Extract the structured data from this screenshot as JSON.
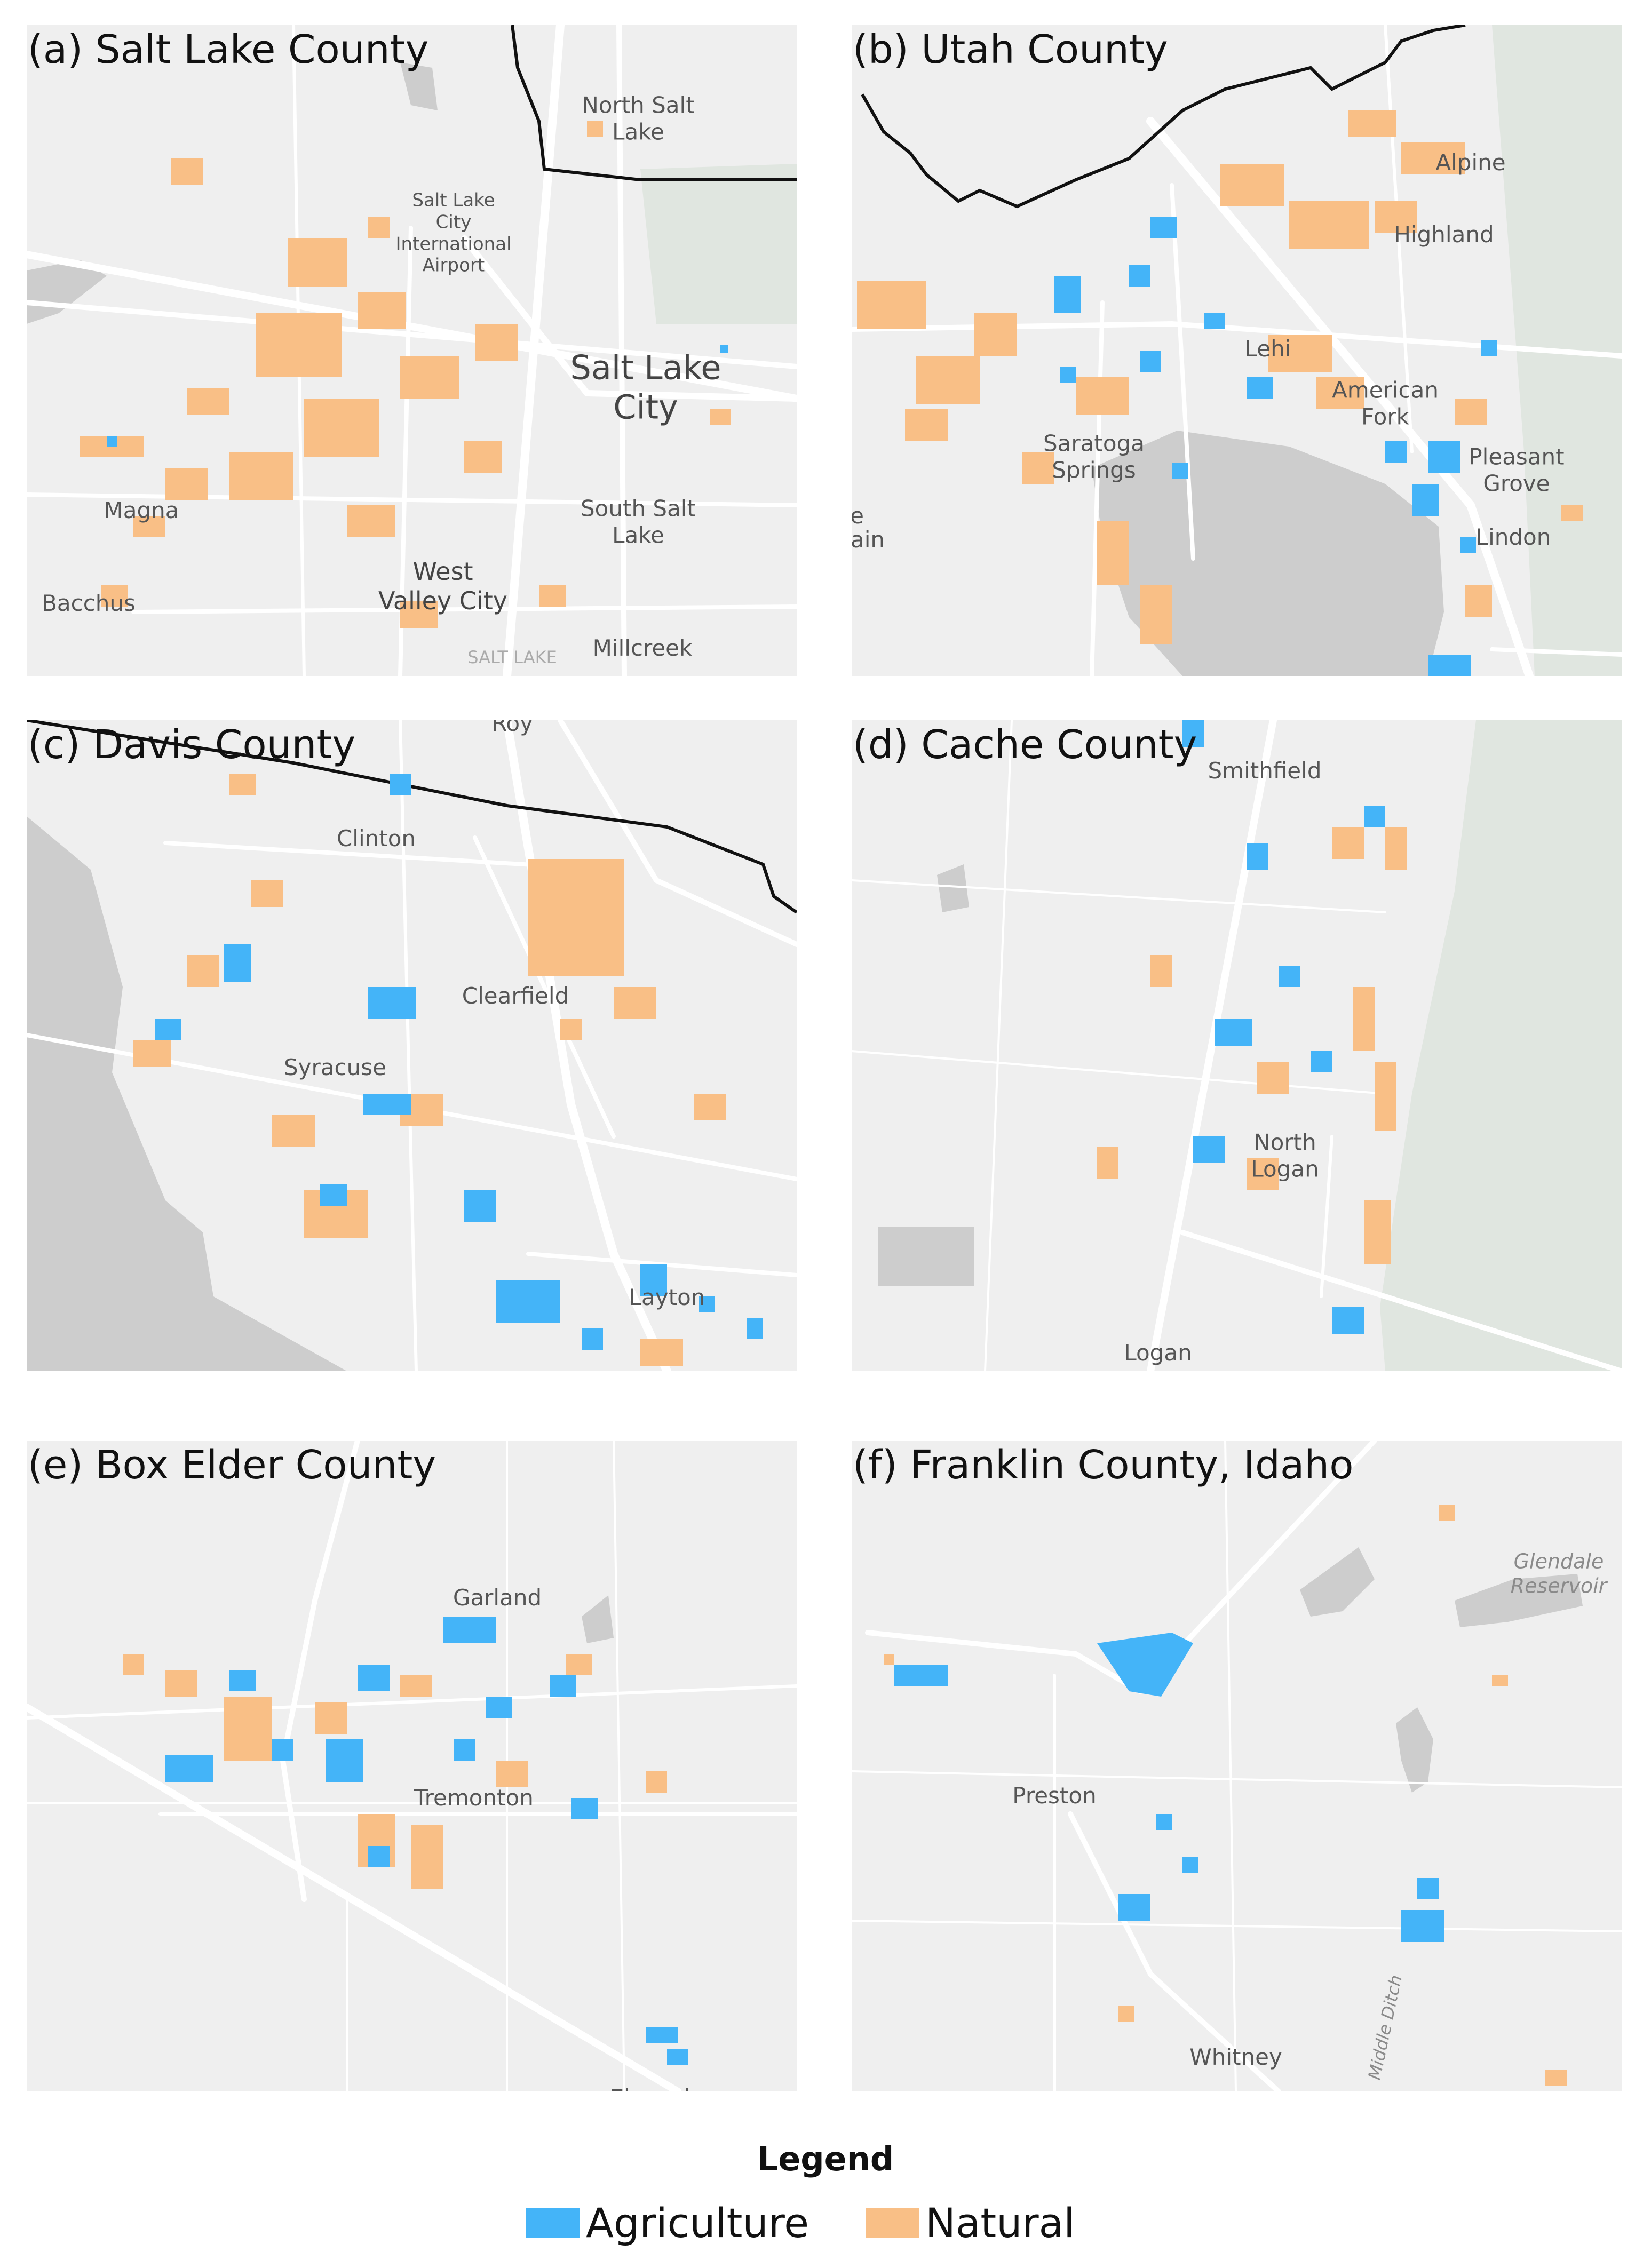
{
  "colors": {
    "agriculture": "#44b4f8",
    "natural": "#f9bf86",
    "background": "#efefef",
    "water": "#cdcdcd",
    "forest": "#e0e6e0",
    "road": "#ffffff",
    "boundary": "#111111"
  },
  "panels": [
    {
      "title": "(a) Salt Lake County",
      "places": [
        "North Salt Lake",
        "Salt Lake City International Airport",
        "Salt Lake City",
        "Magna",
        "South Salt Lake",
        "West Valley City",
        "Bacchus",
        "Millcreek",
        "SALT LAKE"
      ]
    },
    {
      "title": "(b) Utah County",
      "places": [
        "Alpine",
        "Highland",
        "Lehi",
        "American Fork",
        "Saratoga Springs",
        "Pleasant Grove",
        "Lindon",
        "e",
        "ain"
      ]
    },
    {
      "title": "(c) Davis County",
      "places": [
        "Roy",
        "Clinton",
        "Clearfield",
        "Syracuse",
        "Layton"
      ]
    },
    {
      "title": "(d) Cache County",
      "places": [
        "Smithfield",
        "North Logan",
        "Logan"
      ]
    },
    {
      "title": "(e) Box Elder County",
      "places": [
        "Garland",
        "Tremonton",
        "Elwood"
      ]
    },
    {
      "title": "(f) Franklin County, Idaho",
      "places": [
        "Glendale Reservoir",
        "Preston",
        "Whitney",
        "Middle Ditch"
      ]
    }
  ],
  "legend": {
    "title": "Legend",
    "items": [
      {
        "label": "Agriculture",
        "color": "#44b4f8"
      },
      {
        "label": "Natural",
        "color": "#f9bf86"
      }
    ]
  }
}
